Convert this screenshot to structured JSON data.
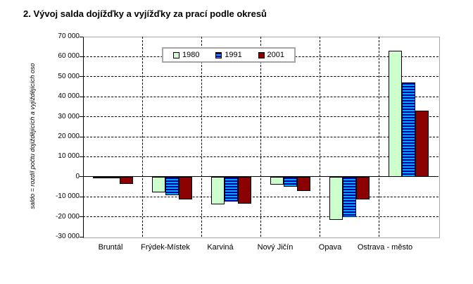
{
  "chart_data": {
    "type": "bar",
    "title": "2. Vývoj salda dojížďky a vyjížďky za prací podle okresů",
    "ylabel": "saldo = rozdíl počtu dojíždějících a vyjíždějících oso",
    "xlabel": "",
    "categories": [
      "Bruntál",
      "Frýdek-Místek",
      "Karviná",
      "Nový Jičín",
      "Opava",
      "Ostrava - město"
    ],
    "series": [
      {
        "name": "1980",
        "pattern": "solid",
        "color": "#CCFFCC",
        "values": [
          -800,
          -7900,
          -13900,
          -3800,
          -21400,
          63000
        ]
      },
      {
        "name": "1991",
        "pattern": "hstripe",
        "color": "#00AAFF",
        "stripe_color": "#0000A0",
        "values": [
          -400,
          -9100,
          -12400,
          -5000,
          -20200,
          47000
        ]
      },
      {
        "name": "2001",
        "pattern": "solid",
        "color": "#8B0000",
        "values": [
          -3700,
          -11200,
          -13300,
          -7000,
          -11400,
          33000
        ]
      }
    ],
    "ylim": [
      -30000,
      70000
    ],
    "ytick_step": 10000,
    "ytick_labels": [
      "70 000",
      "60 000",
      "50 000",
      "40 000",
      "30 000",
      "20 000",
      "10 000",
      "0",
      "-10 000",
      "-20 000",
      "-30 000"
    ],
    "grid": true,
    "legend_position": "top-center",
    "legend_entries": [
      "1980",
      "1991",
      "2001"
    ],
    "colors": {
      "bar_1980": "#CCFFCC",
      "bar_1991_stripe_light": "#00AAFF",
      "bar_1991_stripe_dark": "#0000A0",
      "bar_2001": "#8B0000",
      "plot_border": "#A6A6A6",
      "axis_line": "#000000",
      "background": "#FFFFFF"
    }
  }
}
